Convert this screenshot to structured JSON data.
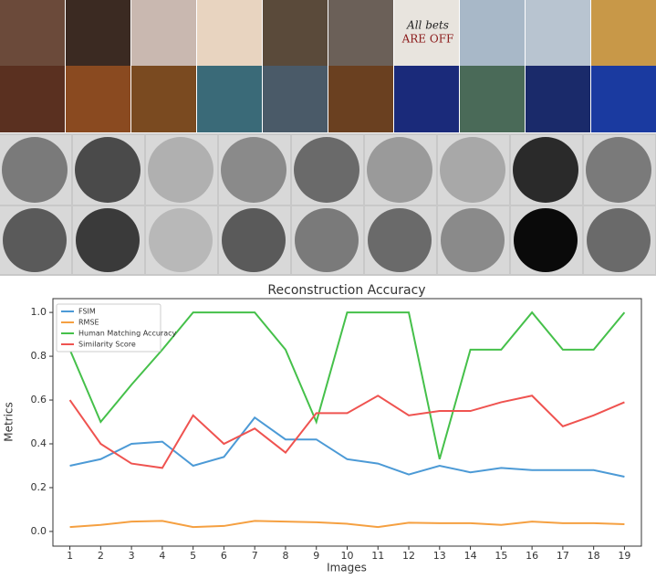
{
  "images": {
    "caption_line1": "All bets",
    "caption_line2": "ARE OFF"
  },
  "chart_data": {
    "type": "line",
    "title": "Reconstruction Accuracy",
    "x_label": "Images",
    "y_label": "Metrics",
    "x": [
      1,
      2,
      3,
      4,
      5,
      6,
      7,
      8,
      9,
      10,
      11,
      12,
      13,
      14,
      15,
      16,
      17,
      18,
      19
    ],
    "series": [
      {
        "name": "FSIM",
        "color": "#4c9ad6",
        "values": [
          0.3,
          0.33,
          0.4,
          0.41,
          0.3,
          0.34,
          0.52,
          0.42,
          0.42,
          0.33,
          0.31,
          0.26,
          0.3,
          0.27,
          0.29,
          0.28,
          0.28,
          0.28,
          0.25
        ]
      },
      {
        "name": "RMSE",
        "color": "#f5a041",
        "values": [
          0.02,
          0.03,
          0.045,
          0.048,
          0.02,
          0.025,
          0.048,
          0.045,
          0.042,
          0.035,
          0.02,
          0.04,
          0.038,
          0.038,
          0.03,
          0.045,
          0.038,
          0.038,
          0.033
        ]
      },
      {
        "name": "Human Matching Accuracy",
        "color": "#45c04a",
        "values": [
          0.83,
          0.5,
          0.67,
          0.83,
          1.0,
          1.0,
          1.0,
          0.83,
          0.5,
          1.0,
          1.0,
          1.0,
          0.33,
          0.83,
          0.83,
          1.0,
          0.83,
          0.83,
          1.0
        ]
      },
      {
        "name": "Similarity Score",
        "color": "#ef5350",
        "values": [
          0.6,
          0.4,
          0.31,
          0.29,
          0.53,
          0.4,
          0.47,
          0.36,
          0.54,
          0.54,
          0.62,
          0.53,
          0.55,
          0.55,
          0.59,
          0.62,
          0.48,
          0.53,
          0.59
        ]
      }
    ],
    "xlim": [
      0.45,
      19.55
    ],
    "ylim": [
      -0.067,
      1.063
    ],
    "xticks": [
      1,
      2,
      3,
      4,
      5,
      6,
      7,
      8,
      9,
      10,
      11,
      12,
      13,
      14,
      15,
      16,
      17,
      18,
      19
    ],
    "yticks": [
      {
        "value": 0,
        "label": "0.0"
      },
      0.2,
      0.4,
      0.6,
      0.8,
      {
        "value": 1,
        "label": "1.0"
      }
    ],
    "legend": "upper left"
  }
}
